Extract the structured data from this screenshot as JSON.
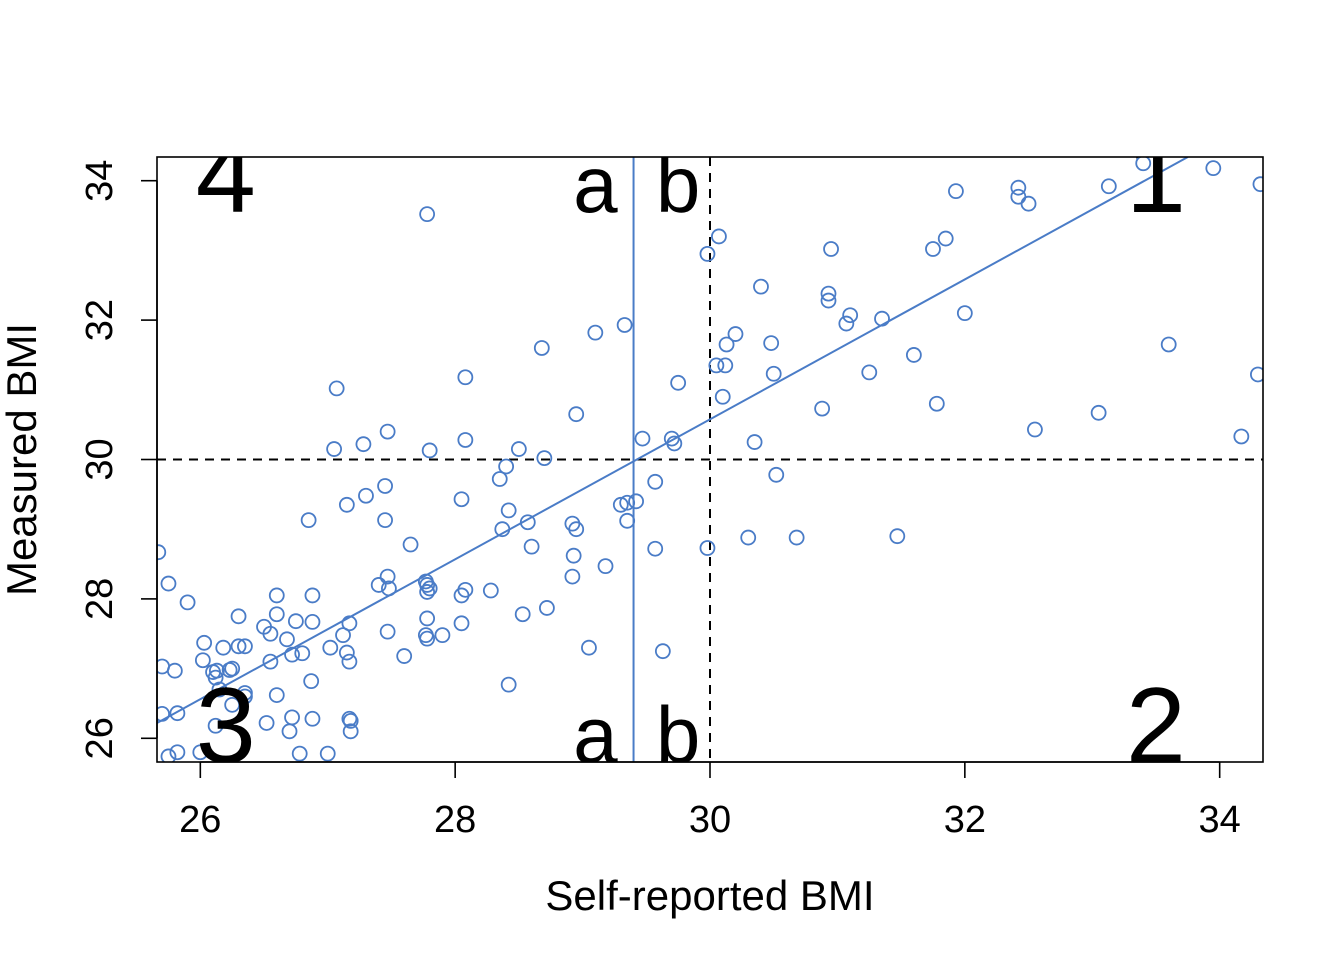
{
  "chart_data": {
    "type": "scatter",
    "title": "",
    "xlabel": "Self-reported BMI",
    "ylabel": "Measured BMI",
    "xlim": [
      25.66,
      34.34
    ],
    "ylim": [
      25.66,
      34.34
    ],
    "xticks": [
      26,
      28,
      30,
      32,
      34
    ],
    "yticks": [
      26,
      28,
      30,
      32,
      34
    ],
    "xtick_labels": [
      "26",
      "28",
      "30",
      "32",
      "34"
    ],
    "ytick_labels": [
      "26",
      "28",
      "30",
      "32",
      "34"
    ],
    "point_color": "#4A7CC7",
    "line_color": "#4A7CC7",
    "reference_lines": {
      "x": 30,
      "y": 30,
      "style": "dashed",
      "color": "#000000"
    },
    "fit_line": {
      "x1": 25.66,
      "y1": 26.22,
      "x2": 33.75,
      "y2": 34.34
    },
    "vertical_line": {
      "x": 29.4
    },
    "quadrant_labels": [
      {
        "text": "1",
        "x": 33.5,
        "y": 33.55
      },
      {
        "text": "2",
        "x": 33.5,
        "y": 25.65
      },
      {
        "text": "3",
        "x": 26.2,
        "y": 25.65
      },
      {
        "text": "4",
        "x": 26.2,
        "y": 33.55
      }
    ],
    "segment_labels": [
      {
        "text": "a",
        "x": 29.1,
        "y": 33.55
      },
      {
        "text": "b",
        "x": 29.75,
        "y": 33.55
      },
      {
        "text": "a",
        "x": 29.1,
        "y": 25.65
      },
      {
        "text": "b",
        "x": 29.75,
        "y": 25.65
      }
    ],
    "points": [
      [
        25.67,
        28.67
      ],
      [
        25.75,
        28.22
      ],
      [
        25.9,
        27.95
      ],
      [
        25.8,
        26.97
      ],
      [
        25.7,
        27.03
      ],
      [
        25.7,
        26.35
      ],
      [
        25.82,
        26.36
      ],
      [
        25.75,
        25.74
      ],
      [
        25.82,
        25.8
      ],
      [
        26.03,
        27.37
      ],
      [
        26.02,
        27.12
      ],
      [
        26.1,
        26.95
      ],
      [
        26.13,
        26.97
      ],
      [
        26.18,
        27.3
      ],
      [
        26.12,
        26.87
      ],
      [
        26.15,
        26.7
      ],
      [
        26.12,
        26.18
      ],
      [
        26.0,
        25.8
      ],
      [
        26.25,
        27.0
      ],
      [
        26.23,
        26.98
      ],
      [
        26.3,
        27.32
      ],
      [
        26.35,
        27.32
      ],
      [
        26.3,
        27.75
      ],
      [
        26.25,
        26.48
      ],
      [
        26.35,
        26.65
      ],
      [
        26.35,
        26.6
      ],
      [
        26.5,
        27.6
      ],
      [
        26.55,
        27.5
      ],
      [
        26.55,
        27.1
      ],
      [
        26.6,
        28.05
      ],
      [
        26.6,
        27.78
      ],
      [
        26.6,
        26.62
      ],
      [
        26.52,
        26.22
      ],
      [
        26.68,
        27.42
      ],
      [
        26.72,
        27.2
      ],
      [
        26.75,
        27.68
      ],
      [
        26.72,
        26.3
      ],
      [
        26.7,
        26.1
      ],
      [
        26.8,
        27.22
      ],
      [
        26.78,
        25.78
      ],
      [
        26.85,
        29.13
      ],
      [
        26.88,
        28.05
      ],
      [
        26.88,
        27.67
      ],
      [
        26.87,
        26.82
      ],
      [
        26.88,
        26.28
      ],
      [
        27.0,
        25.78
      ],
      [
        27.02,
        27.3
      ],
      [
        27.05,
        30.15
      ],
      [
        27.07,
        31.02
      ],
      [
        27.12,
        27.48
      ],
      [
        27.15,
        29.35
      ],
      [
        27.15,
        27.23
      ],
      [
        27.17,
        27.65
      ],
      [
        27.17,
        27.1
      ],
      [
        27.17,
        26.28
      ],
      [
        27.18,
        26.25
      ],
      [
        27.18,
        26.1
      ],
      [
        27.3,
        29.48
      ],
      [
        27.28,
        30.22
      ],
      [
        27.4,
        28.2
      ],
      [
        27.45,
        29.62
      ],
      [
        27.45,
        29.13
      ],
      [
        27.47,
        28.32
      ],
      [
        27.48,
        28.15
      ],
      [
        27.47,
        30.4
      ],
      [
        27.47,
        27.53
      ],
      [
        27.6,
        27.18
      ],
      [
        27.65,
        28.78
      ],
      [
        27.77,
        28.25
      ],
      [
        27.78,
        28.2
      ],
      [
        27.78,
        28.1
      ],
      [
        27.8,
        28.15
      ],
      [
        27.78,
        27.72
      ],
      [
        27.77,
        27.48
      ],
      [
        27.78,
        27.43
      ],
      [
        27.8,
        30.13
      ],
      [
        27.78,
        33.52
      ],
      [
        27.9,
        27.48
      ],
      [
        28.05,
        28.05
      ],
      [
        28.05,
        29.43
      ],
      [
        28.05,
        27.65
      ],
      [
        28.08,
        28.13
      ],
      [
        28.08,
        30.28
      ],
      [
        28.08,
        31.18
      ],
      [
        28.28,
        28.12
      ],
      [
        28.35,
        29.72
      ],
      [
        28.37,
        29.0
      ],
      [
        28.4,
        29.9
      ],
      [
        28.42,
        29.27
      ],
      [
        28.42,
        26.77
      ],
      [
        28.5,
        30.15
      ],
      [
        28.53,
        27.78
      ],
      [
        28.57,
        29.1
      ],
      [
        28.6,
        28.75
      ],
      [
        28.68,
        31.6
      ],
      [
        28.7,
        30.02
      ],
      [
        28.72,
        27.87
      ],
      [
        28.92,
        29.08
      ],
      [
        28.92,
        28.32
      ],
      [
        28.93,
        28.62
      ],
      [
        28.95,
        29.0
      ],
      [
        28.95,
        30.65
      ],
      [
        29.05,
        27.3
      ],
      [
        29.1,
        31.82
      ],
      [
        29.18,
        28.47
      ],
      [
        29.3,
        29.35
      ],
      [
        29.33,
        31.93
      ],
      [
        29.35,
        29.12
      ],
      [
        29.35,
        29.38
      ],
      [
        29.42,
        29.4
      ],
      [
        29.47,
        30.3
      ],
      [
        29.57,
        28.72
      ],
      [
        29.57,
        29.68
      ],
      [
        29.63,
        27.25
      ],
      [
        29.7,
        30.3
      ],
      [
        29.72,
        30.23
      ],
      [
        29.75,
        31.1
      ],
      [
        29.98,
        28.73
      ],
      [
        29.98,
        32.95
      ],
      [
        30.05,
        31.35
      ],
      [
        30.07,
        33.2
      ],
      [
        30.1,
        30.9
      ],
      [
        30.12,
        31.35
      ],
      [
        30.13,
        31.65
      ],
      [
        30.2,
        31.8
      ],
      [
        30.3,
        28.88
      ],
      [
        30.35,
        30.25
      ],
      [
        30.4,
        32.48
      ],
      [
        30.48,
        31.67
      ],
      [
        30.5,
        31.23
      ],
      [
        30.52,
        29.78
      ],
      [
        30.68,
        28.88
      ],
      [
        30.88,
        30.73
      ],
      [
        30.93,
        32.38
      ],
      [
        30.93,
        32.28
      ],
      [
        30.95,
        33.02
      ],
      [
        31.07,
        31.95
      ],
      [
        31.1,
        32.07
      ],
      [
        31.25,
        31.25
      ],
      [
        31.35,
        32.02
      ],
      [
        31.47,
        28.9
      ],
      [
        31.6,
        31.5
      ],
      [
        31.75,
        33.02
      ],
      [
        31.78,
        30.8
      ],
      [
        31.85,
        33.17
      ],
      [
        31.93,
        33.85
      ],
      [
        32.0,
        32.1
      ],
      [
        32.42,
        33.9
      ],
      [
        32.42,
        33.77
      ],
      [
        32.5,
        33.67
      ],
      [
        32.55,
        30.43
      ],
      [
        33.05,
        30.67
      ],
      [
        33.13,
        33.92
      ],
      [
        33.4,
        34.25
      ],
      [
        33.6,
        31.65
      ],
      [
        33.95,
        34.18
      ],
      [
        34.17,
        30.33
      ],
      [
        34.3,
        31.22
      ],
      [
        34.32,
        33.95
      ]
    ]
  }
}
